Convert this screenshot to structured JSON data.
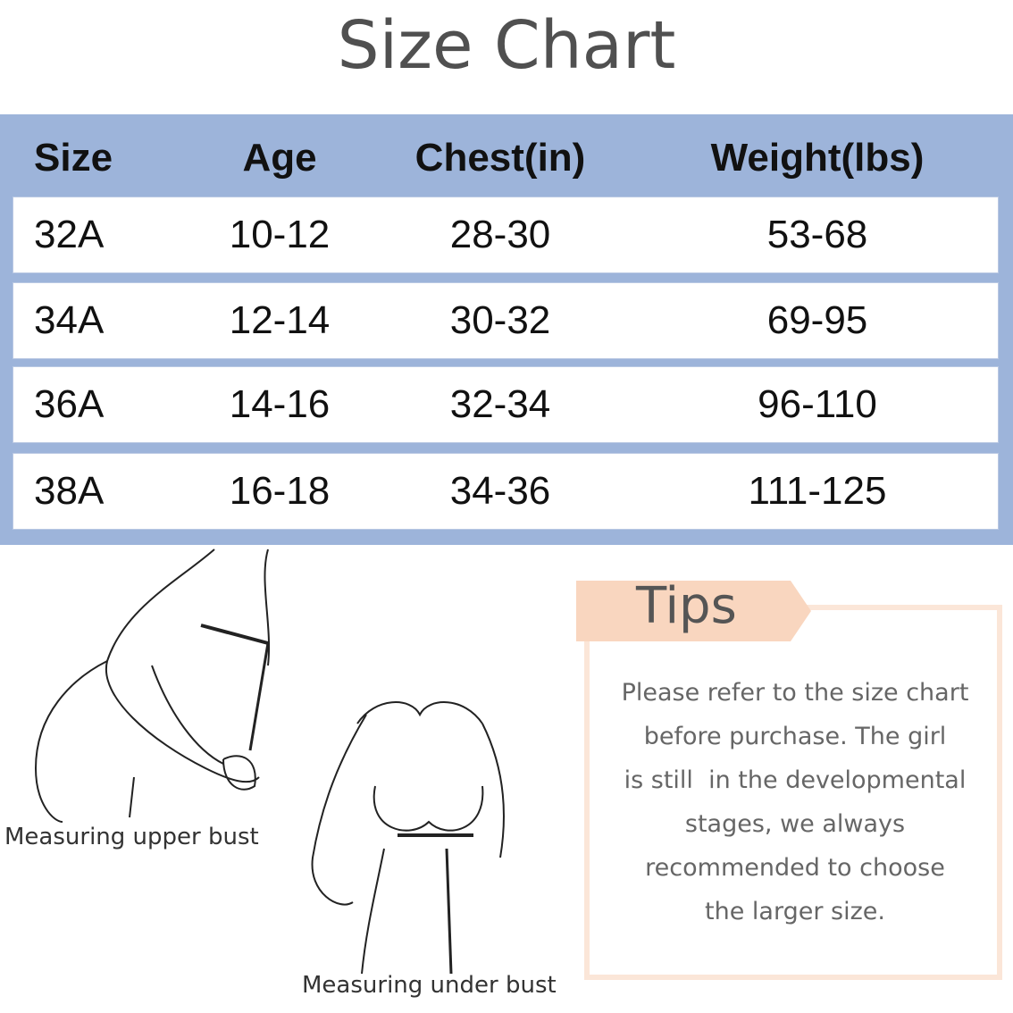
{
  "title": "Size Chart",
  "table": {
    "header": [
      "Size",
      "Age",
      "Chest(in)",
      "Weight(lbs)"
    ],
    "rows": [
      [
        "32A",
        "10-12",
        "28-30",
        "53-68"
      ],
      [
        "34A",
        "12-14",
        "30-32",
        "69-95"
      ],
      [
        "36A",
        "14-16",
        "32-34",
        "96-110"
      ],
      [
        "38A",
        "16-18",
        "34-36",
        "111-125"
      ]
    ]
  },
  "illustrations": {
    "upper_caption": "Measuring upper bust",
    "under_caption": "Measuring under bust"
  },
  "tips": {
    "title": "Tips",
    "lines": [
      "Please refer to the size chart",
      "before purchase. The girl",
      "is still  in the developmental",
      "stages, we always",
      "recommended to choose",
      "the larger size."
    ]
  }
}
